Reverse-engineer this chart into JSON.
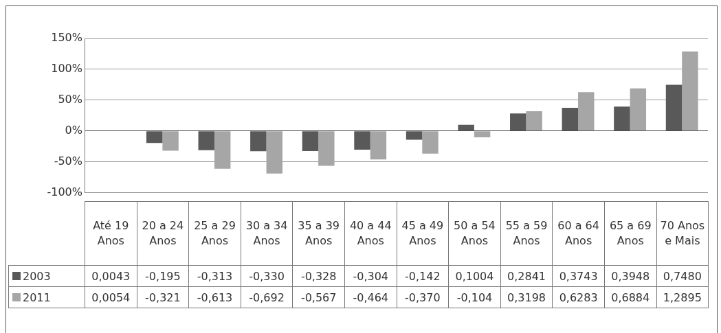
{
  "chart_data": {
    "type": "bar",
    "categories": [
      "Até 19 Anos",
      "20 a 24 Anos",
      "25 a 29 Anos",
      "30 a 34 Anos",
      "35 a 39 Anos",
      "40 a 44 Anos",
      "45 a 49 Anos",
      "50 a 54 Anos",
      "55 a 59 Anos",
      "60 a 64 Anos",
      "65 a 69 Anos",
      "70 Anos e Mais"
    ],
    "series": [
      {
        "name": "2003",
        "color": "#595959",
        "values": [
          0.0043,
          -0.195,
          -0.313,
          -0.33,
          -0.328,
          -0.304,
          -0.142,
          0.1004,
          0.2841,
          0.3743,
          0.3948,
          0.748
        ],
        "value_labels": [
          "0,0043",
          "-0,195",
          "-0,313",
          "-0,330",
          "-0,328",
          "-0,304",
          "-0,142",
          "0,1004",
          "0,2841",
          "0,3743",
          "0,3948",
          "0,7480"
        ]
      },
      {
        "name": "2011",
        "color": "#a6a6a6",
        "values": [
          0.0054,
          -0.321,
          -0.613,
          -0.692,
          -0.567,
          -0.464,
          -0.37,
          -0.104,
          0.3198,
          0.6283,
          0.6884,
          1.2895
        ],
        "value_labels": [
          "0,0054",
          "-0,321",
          "-0,613",
          "-0,692",
          "-0,567",
          "-0,464",
          "-0,370",
          "-0,104",
          "0,3198",
          "0,6283",
          "0,6884",
          "1,2895"
        ]
      }
    ],
    "ylim": [
      -1,
      1.5
    ],
    "yticks": [
      {
        "value": -1,
        "label": "-100%"
      },
      {
        "value": -0.5,
        "label": "-50%"
      },
      {
        "value": 0,
        "label": "0%"
      },
      {
        "value": 0.5,
        "label": "50%"
      },
      {
        "value": 1,
        "label": "100%"
      },
      {
        "value": 1.5,
        "label": "150%"
      }
    ],
    "grid": "y",
    "legend": "bottom"
  }
}
